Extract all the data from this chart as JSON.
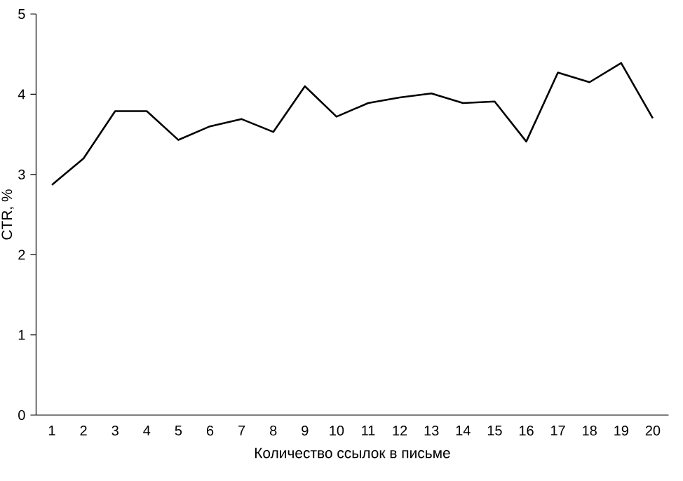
{
  "chart_data": {
    "type": "line",
    "xlabel": "Количество ссылок в письме",
    "ylabel": "CTR, %",
    "categories": [
      "1",
      "2",
      "3",
      "4",
      "5",
      "6",
      "7",
      "8",
      "9",
      "10",
      "11",
      "12",
      "13",
      "14",
      "15",
      "16",
      "17",
      "18",
      "19",
      "20"
    ],
    "values": [
      2.87,
      3.2,
      3.79,
      3.79,
      3.43,
      3.6,
      3.69,
      3.53,
      4.1,
      3.72,
      3.89,
      3.96,
      4.01,
      3.89,
      3.91,
      3.41,
      4.27,
      4.15,
      4.39,
      3.7
    ],
    "color": "#000000",
    "ylim": [
      0,
      5
    ],
    "yticks": [
      0,
      1,
      2,
      3,
      4,
      5
    ],
    "grid": false,
    "marker": "none",
    "line_style": "solid"
  }
}
